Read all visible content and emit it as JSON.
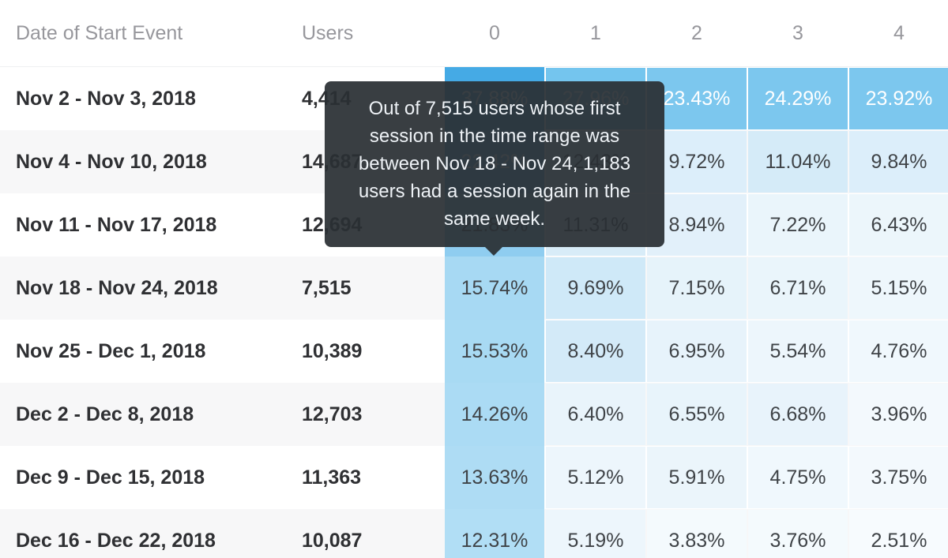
{
  "header": {
    "date_col": "Date of Start Event",
    "users_col": "Users",
    "week_cols": [
      "0",
      "1",
      "2",
      "3",
      "4"
    ]
  },
  "tooltip": {
    "text": "Out of 7,515 users whose first session in the time range was between Nov 18 - Nov 24, 1,183 users had a session again in the same week."
  },
  "colors": {
    "hover_tooltip_bg": "#2a2f34",
    "accent_strong": "#45aae5",
    "accent_hover_column": "#a7d9f3",
    "stripe_row": "#f7f7f8",
    "dark_text": "#3f4347",
    "light_text": "#ffffff"
  },
  "table": {
    "rows": [
      {
        "date": "Nov 2 - Nov 3, 2018",
        "users": "4,414",
        "cells": [
          {
            "value": "37.88%",
            "bg": "#45aae5",
            "fg": "#ffffff"
          },
          {
            "value": "27.96%",
            "bg": "#74c5ee",
            "fg": "#ffffff"
          },
          {
            "value": "23.43%",
            "bg": "#7cc7ee",
            "fg": "#ffffff"
          },
          {
            "value": "24.29%",
            "bg": "#7cc7ee",
            "fg": "#ffffff"
          },
          {
            "value": "23.92%",
            "bg": "#7cc7ee",
            "fg": "#ffffff"
          }
        ]
      },
      {
        "date": "Nov 4 - Nov 10, 2018",
        "users": "14,687",
        "cells": [
          {
            "value": "22.42%",
            "bg": "#63b9e9",
            "fg": "#ffffff"
          },
          {
            "value": "12.43%",
            "bg": "#cde8f7",
            "fg": "#3f4347"
          },
          {
            "value": "9.72%",
            "bg": "#dceefa",
            "fg": "#3f4347"
          },
          {
            "value": "11.04%",
            "bg": "#d5ebf8",
            "fg": "#3f4347"
          },
          {
            "value": "9.84%",
            "bg": "#dceefa",
            "fg": "#3f4347"
          }
        ]
      },
      {
        "date": "Nov 11 - Nov 17, 2018",
        "users": "12,694",
        "cells": [
          {
            "value": "21.83%",
            "bg": "#8fcdf0",
            "fg": "#3f4347"
          },
          {
            "value": "11.31%",
            "bg": "#d8ecf8",
            "fg": "#3f4347"
          },
          {
            "value": "8.94%",
            "bg": "#e2f0fa",
            "fg": "#3f4347"
          },
          {
            "value": "7.22%",
            "bg": "#eaf5fb",
            "fg": "#3f4347"
          },
          {
            "value": "6.43%",
            "bg": "#ecf6fb",
            "fg": "#3f4347"
          }
        ]
      },
      {
        "date": "Nov 18 - Nov 24, 2018",
        "users": "7,515",
        "cells": [
          {
            "value": "15.74%",
            "bg": "#a7d9f3",
            "fg": "#3f4347"
          },
          {
            "value": "9.69%",
            "bg": "#cfe9f8",
            "fg": "#3f4347"
          },
          {
            "value": "7.15%",
            "bg": "#e6f3fa",
            "fg": "#3f4347"
          },
          {
            "value": "6.71%",
            "bg": "#eaf5fb",
            "fg": "#3f4347"
          },
          {
            "value": "5.15%",
            "bg": "#eef7fc",
            "fg": "#3f4347"
          }
        ]
      },
      {
        "date": "Nov 25 - Dec 1, 2018",
        "users": "10,389",
        "cells": [
          {
            "value": "15.53%",
            "bg": "#a8daf3",
            "fg": "#3f4347"
          },
          {
            "value": "8.40%",
            "bg": "#d3eaf8",
            "fg": "#3f4347"
          },
          {
            "value": "6.95%",
            "bg": "#e7f3fb",
            "fg": "#3f4347"
          },
          {
            "value": "5.54%",
            "bg": "#edf6fc",
            "fg": "#3f4347"
          },
          {
            "value": "4.76%",
            "bg": "#f0f8fd",
            "fg": "#3f4347"
          }
        ]
      },
      {
        "date": "Dec 2 - Dec 8, 2018",
        "users": "12,703",
        "cells": [
          {
            "value": "14.26%",
            "bg": "#abdbf4",
            "fg": "#3f4347"
          },
          {
            "value": "6.40%",
            "bg": "#e9f4fb",
            "fg": "#3f4347"
          },
          {
            "value": "6.55%",
            "bg": "#e8f4fb",
            "fg": "#3f4347"
          },
          {
            "value": "6.68%",
            "bg": "#e8f3fb",
            "fg": "#3f4347"
          },
          {
            "value": "3.96%",
            "bg": "#f3f9fd",
            "fg": "#3f4347"
          }
        ]
      },
      {
        "date": "Dec 9 - Dec 15, 2018",
        "users": "11,363",
        "cells": [
          {
            "value": "13.63%",
            "bg": "#aedcf4",
            "fg": "#3f4347"
          },
          {
            "value": "5.12%",
            "bg": "#edf6fc",
            "fg": "#3f4347"
          },
          {
            "value": "5.91%",
            "bg": "#ebf5fb",
            "fg": "#3f4347"
          },
          {
            "value": "4.75%",
            "bg": "#f0f8fd",
            "fg": "#3f4347"
          },
          {
            "value": "3.75%",
            "bg": "#f3f9fd",
            "fg": "#3f4347"
          }
        ]
      },
      {
        "date": "Dec 16 - Dec 22, 2018",
        "users": "10,087",
        "cells": [
          {
            "value": "12.31%",
            "bg": "#b1def5",
            "fg": "#3f4347"
          },
          {
            "value": "5.19%",
            "bg": "#edf6fc",
            "fg": "#3f4347"
          },
          {
            "value": "3.83%",
            "bg": "#f4fafd",
            "fg": "#3f4347"
          },
          {
            "value": "3.76%",
            "bg": "#f4fafd",
            "fg": "#3f4347"
          },
          {
            "value": "2.51%",
            "bg": "#f7fbfe",
            "fg": "#3f4347"
          }
        ]
      }
    ]
  }
}
